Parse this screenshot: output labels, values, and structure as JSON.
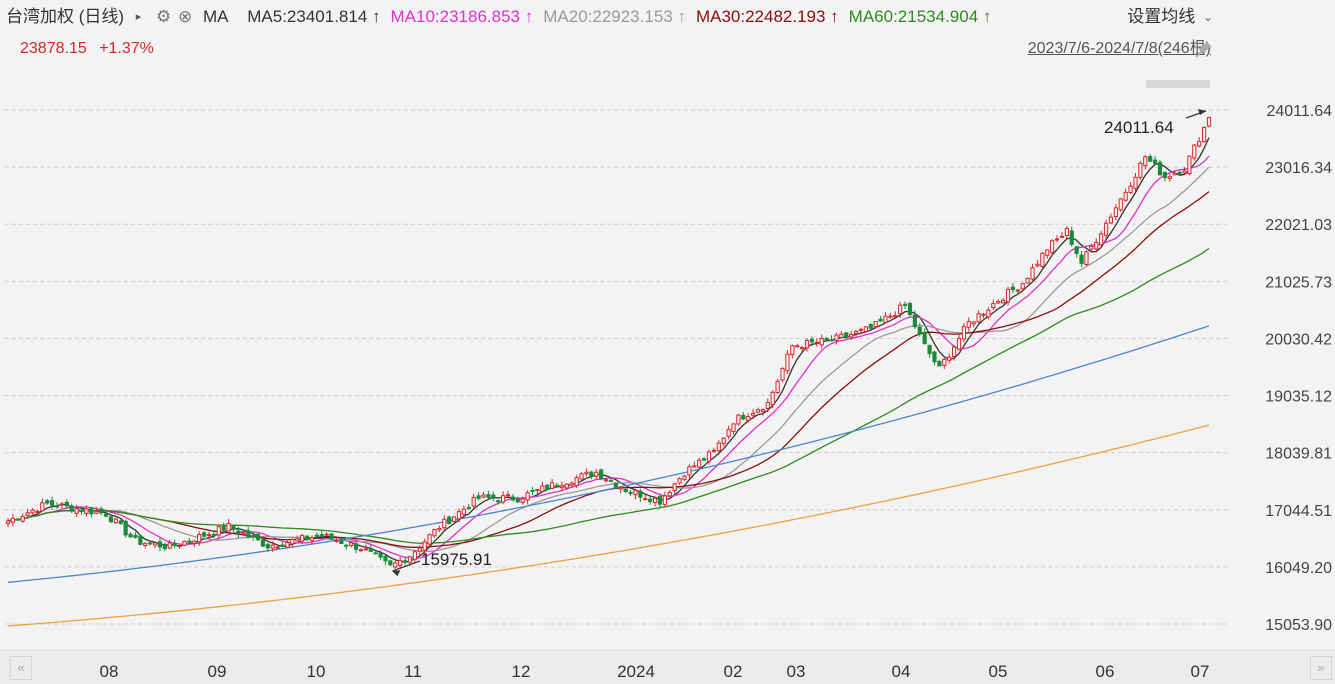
{
  "header": {
    "title": "台湾加权 (日线)",
    "play_icon": "triangle-right-icon",
    "settings_icon": "gear-icon",
    "close_icon": "close-circle-icon",
    "ma_label": "MA",
    "ma_items": [
      {
        "text": "MA5:23401.814",
        "arrow": "↑",
        "color": "#333333"
      },
      {
        "text": "MA10:23186.853",
        "arrow": "↑",
        "color": "#e030d0"
      },
      {
        "text": "MA20:22923.153",
        "arrow": "↑",
        "color": "#9a9a9a"
      },
      {
        "text": "MA30:22482.193",
        "arrow": "↑",
        "color": "#8b0e0e"
      },
      {
        "text": "MA60:21534.904",
        "arrow": "↑",
        "color": "#2f8a1f"
      }
    ],
    "settings_label": "设置均线",
    "settings_chevron": "chevron-down-icon",
    "last_price": "23878.15",
    "change_pct": "+1.37%",
    "range": "2023/7/6-2024/7/8(246根)",
    "pin_icon": "pin-icon"
  },
  "nav": {
    "prev_icon": "double-chevron-left-icon",
    "next_icon": "double-chevron-right-icon",
    "prev_label": "«",
    "next_label": "»"
  },
  "chart_data": {
    "type": "candlestick",
    "y_ticks": [
      "24011.64",
      "23016.34",
      "22021.03",
      "21025.73",
      "20030.42",
      "19035.12",
      "18039.81",
      "17044.51",
      "16049.20",
      "15053.90"
    ],
    "ylim": [
      15053.9,
      24011.64
    ],
    "x_ticks": [
      "08",
      "09",
      "10",
      "11",
      "12",
      "2024",
      "02",
      "03",
      "04",
      "05",
      "06",
      "07"
    ],
    "annotations": [
      {
        "label": "24011.64",
        "kind": "high"
      },
      {
        "label": "15975.91",
        "kind": "low"
      }
    ],
    "colors": {
      "up": "#d9262b",
      "down": "#1c8a3b",
      "grid": "#cfcfcf"
    },
    "anchors": [
      {
        "i": 0,
        "close": 16850
      },
      {
        "i": 8,
        "close": 17150
      },
      {
        "i": 20,
        "close": 16980
      },
      {
        "i": 26,
        "close": 16500
      },
      {
        "i": 33,
        "close": 16400
      },
      {
        "i": 45,
        "close": 16750
      },
      {
        "i": 53,
        "close": 16420
      },
      {
        "i": 64,
        "close": 16600
      },
      {
        "i": 72,
        "close": 16380
      },
      {
        "i": 78,
        "close": 16050
      },
      {
        "i": 82,
        "close": 16250
      },
      {
        "i": 88,
        "close": 16750
      },
      {
        "i": 96,
        "close": 17250
      },
      {
        "i": 104,
        "close": 17250
      },
      {
        "i": 112,
        "close": 17500
      },
      {
        "i": 120,
        "close": 17700
      },
      {
        "i": 126,
        "close": 17400
      },
      {
        "i": 133,
        "close": 17200
      },
      {
        "i": 138,
        "close": 17700
      },
      {
        "i": 144,
        "close": 18050
      },
      {
        "i": 148,
        "close": 18600
      },
      {
        "i": 155,
        "close": 18900
      },
      {
        "i": 160,
        "close": 19900
      },
      {
        "i": 168,
        "close": 20000
      },
      {
        "i": 176,
        "close": 20200
      },
      {
        "i": 183,
        "close": 20600
      },
      {
        "i": 187,
        "close": 19900
      },
      {
        "i": 190,
        "close": 19500
      },
      {
        "i": 196,
        "close": 20300
      },
      {
        "i": 202,
        "close": 20700
      },
      {
        "i": 207,
        "close": 21000
      },
      {
        "i": 212,
        "close": 21600
      },
      {
        "i": 216,
        "close": 21900
      },
      {
        "i": 219,
        "close": 21350
      },
      {
        "i": 223,
        "close": 21900
      },
      {
        "i": 228,
        "close": 22600
      },
      {
        "i": 232,
        "close": 23200
      },
      {
        "i": 236,
        "close": 22850
      },
      {
        "i": 240,
        "close": 23000
      },
      {
        "i": 245,
        "close": 23878.15
      }
    ],
    "series": [
      {
        "name": "MA5",
        "color": "#333333"
      },
      {
        "name": "MA10",
        "color": "#e030d0"
      },
      {
        "name": "MA20",
        "color": "#9a9a9a"
      },
      {
        "name": "MA30",
        "color": "#8b0e0e"
      },
      {
        "name": "MA60",
        "color": "#2f8a1f"
      },
      {
        "name": "",
        "color": "#4a86d0",
        "values": [
          15780,
          20250
        ]
      },
      {
        "name": "",
        "color": "#f0a040",
        "values": [
          15020,
          18520
        ]
      }
    ],
    "grid": true
  }
}
